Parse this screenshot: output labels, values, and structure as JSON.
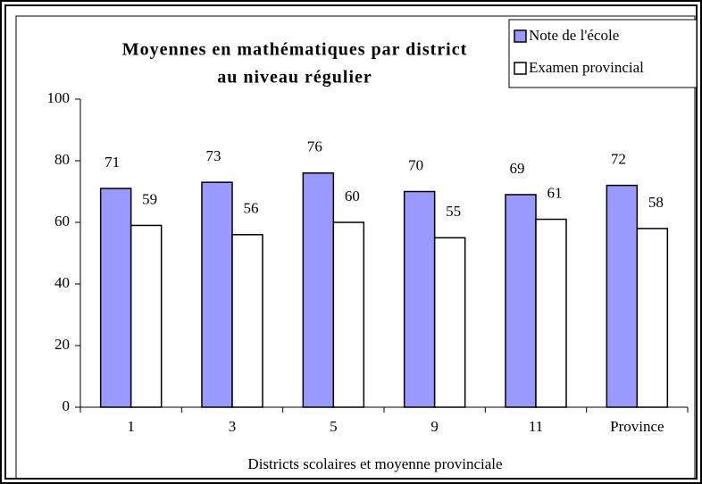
{
  "chart_data": {
    "type": "bar",
    "title": [
      "Moyennes en mathématiques par district",
      "au niveau régulier"
    ],
    "x_label": "Districts scolaires et moyenne provinciale",
    "categories": [
      "1",
      "3",
      "5",
      "9",
      "11",
      "Province"
    ],
    "series": [
      {
        "name": "Note de l'école",
        "color": "#9999ff",
        "values": [
          71,
          73,
          76,
          70,
          69,
          72
        ]
      },
      {
        "name": "Examen provincial",
        "color": "#ffffff",
        "values": [
          59,
          56,
          60,
          55,
          61,
          58
        ]
      }
    ],
    "ylim": [
      0,
      100
    ],
    "yticks": [
      0,
      20,
      40,
      60,
      80,
      100
    ],
    "grid": false,
    "legend": "top-right"
  }
}
